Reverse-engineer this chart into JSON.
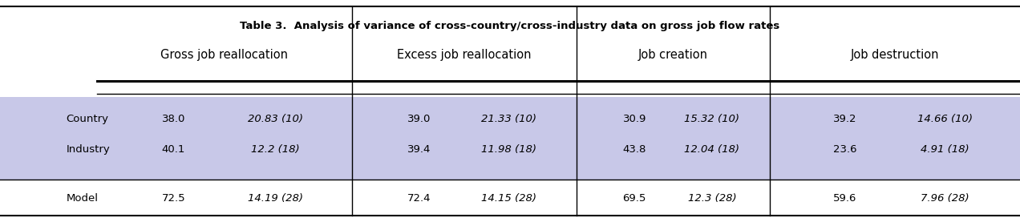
{
  "title": "Table 3.  Analysis of variance of cross-country/cross-industry data on gross job flow rates",
  "col_groups": [
    {
      "label": "Gross job reallocation"
    },
    {
      "label": "Excess job reallocation"
    },
    {
      "label": "Job creation"
    },
    {
      "label": "Job destruction"
    }
  ],
  "rows": [
    {
      "label": "Country",
      "v1": "38.0",
      "v2": "20.83 (10)",
      "v3": "39.0",
      "v4": "21.33 (10)",
      "v5": "30.9",
      "v6": "15.32 (10)",
      "v7": "39.2",
      "v8": "14.66 (10)",
      "shaded": true
    },
    {
      "label": "Industry",
      "v1": "40.1",
      "v2": "12.2 (18)",
      "v3": "39.4",
      "v4": "11.98 (18)",
      "v5": "43.8",
      "v6": "12.04 (18)",
      "v7": "23.6",
      "v8": "4.91 (18)",
      "shaded": true
    },
    {
      "label": "",
      "v1": "",
      "v2": "",
      "v3": "",
      "v4": "",
      "v5": "",
      "v6": "",
      "v7": "",
      "v8": "",
      "shaded": true
    },
    {
      "label": "Model",
      "v1": "72.5",
      "v2": "14.19 (28)",
      "v3": "72.4",
      "v4": "14.15 (28)",
      "v5": "69.5",
      "v6": "12.3 (28)",
      "v7": "59.6",
      "v8": "7.96 (28)",
      "shaded": false
    }
  ],
  "shaded_color": "#c8c8e8",
  "bg_color": "#ffffff",
  "line_color": "#000000",
  "text_color": "#000000",
  "body_fontsize": 9.5,
  "header_fontsize": 10.5,
  "title_fontsize": 9.5,
  "figsize": [
    12.72,
    2.72
  ],
  "dpi": 100
}
